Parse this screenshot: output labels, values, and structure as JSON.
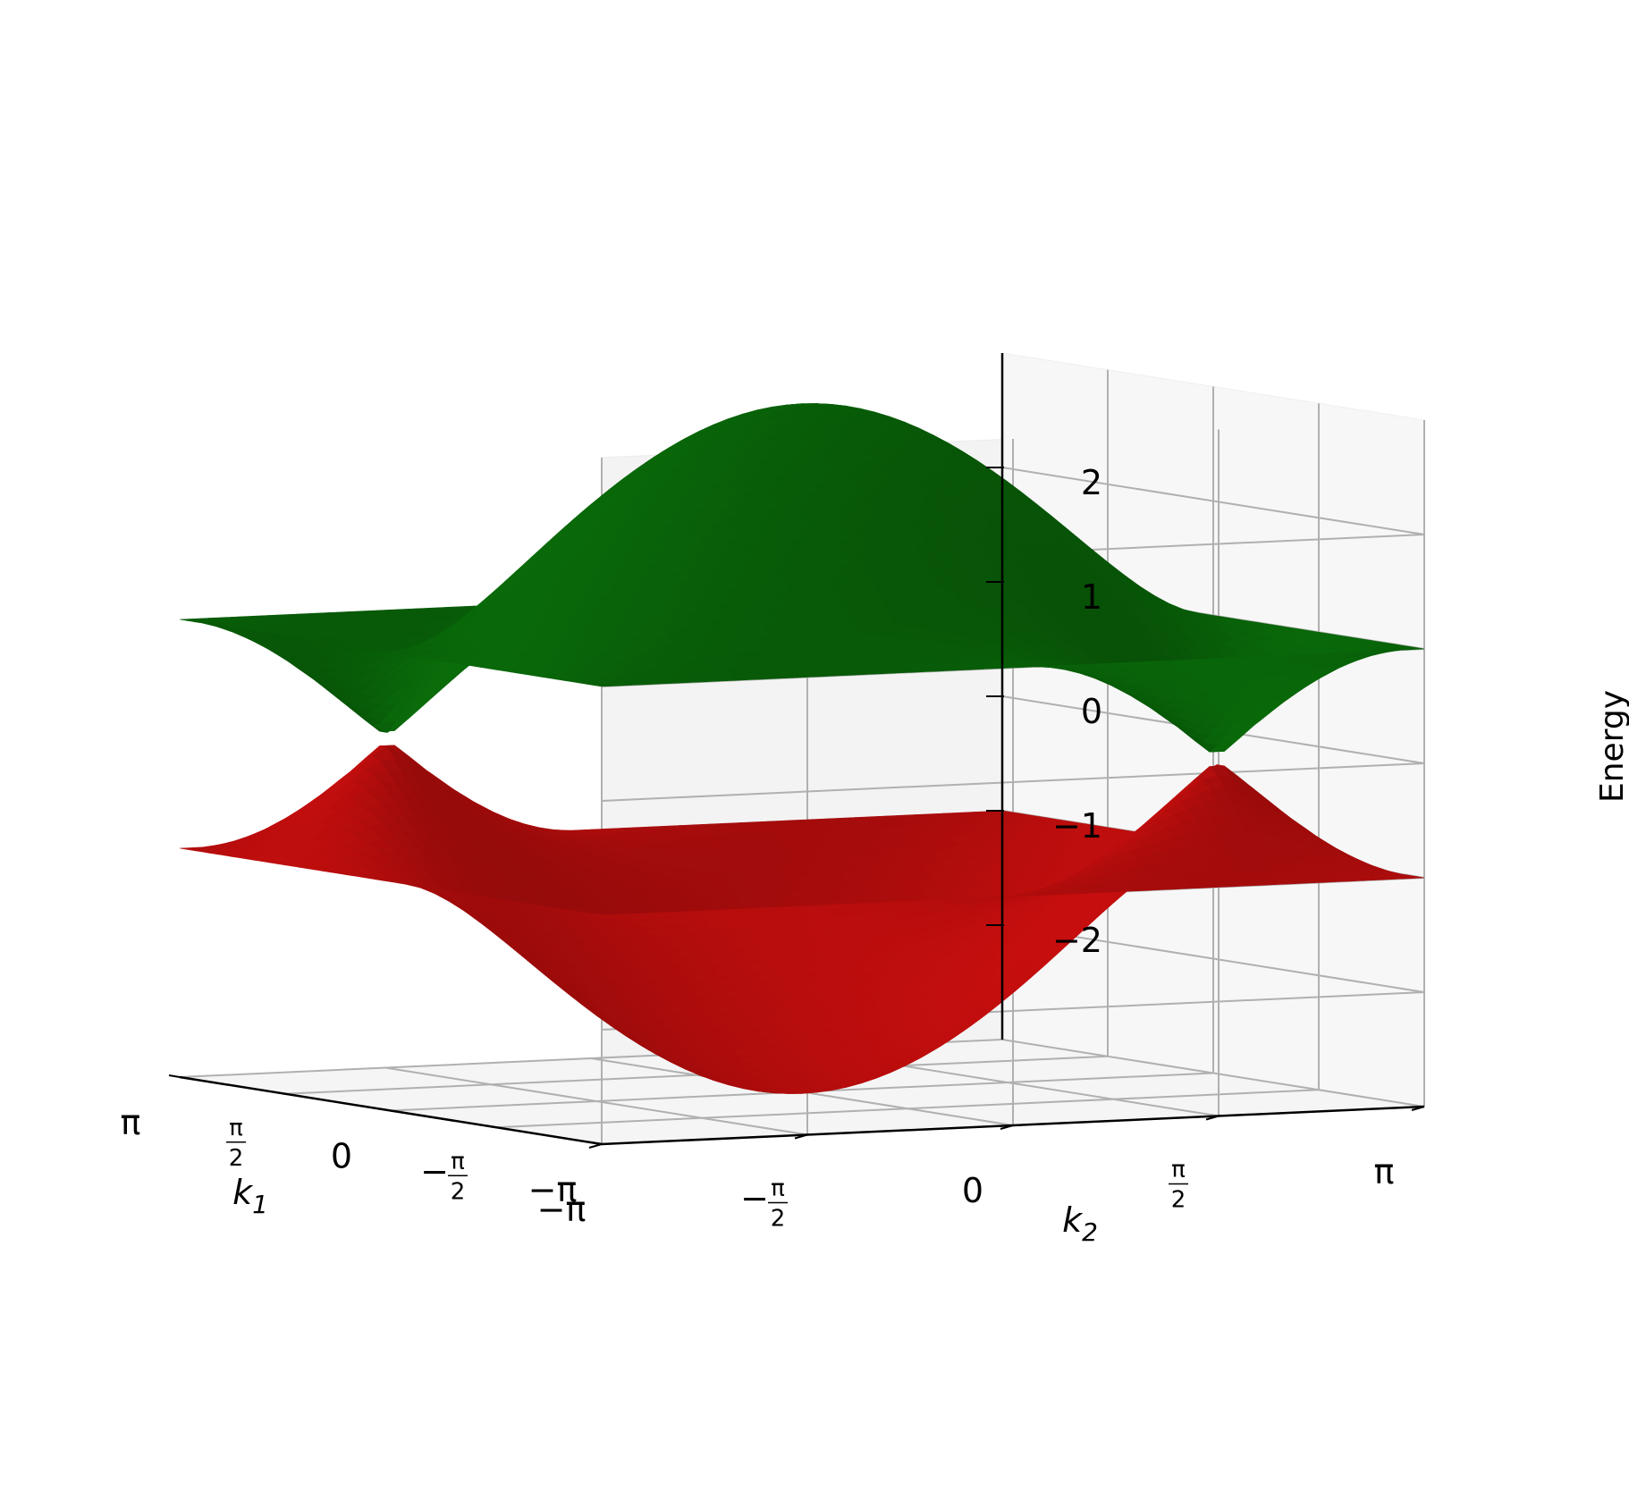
{
  "chart_data": {
    "type": "surface3d",
    "title": "",
    "x_axis": {
      "label": "k_1",
      "label_text": "k",
      "label_sub": "1",
      "range": [
        -3.14159,
        3.14159
      ],
      "ticks": [
        {
          "v": -3.14159,
          "t": "−π"
        },
        {
          "v": -1.5708,
          "t": "−π/2",
          "sign": "−",
          "num": "π",
          "den": "2"
        },
        {
          "v": 0,
          "t": "0"
        },
        {
          "v": 1.5708,
          "t": "π/2",
          "num": "π",
          "den": "2"
        },
        {
          "v": 3.14159,
          "t": "π"
        }
      ]
    },
    "y_axis": {
      "label": "k_2",
      "label_text": "k",
      "label_sub": "2",
      "range": [
        -3.14159,
        3.14159
      ],
      "ticks": [
        {
          "v": -3.14159,
          "t": "−π"
        },
        {
          "v": -1.5708,
          "t": "−π/2",
          "sign": "−",
          "num": "π",
          "den": "2"
        },
        {
          "v": 0,
          "t": "0"
        },
        {
          "v": 1.5708,
          "t": "π/2",
          "num": "π",
          "den": "2"
        },
        {
          "v": 3.14159,
          "t": "π"
        }
      ]
    },
    "z_axis": {
      "label": "Energy",
      "range": [
        -3,
        3
      ],
      "ticks": [
        {
          "v": -2,
          "t": "−2"
        },
        {
          "v": -1,
          "t": "−1"
        },
        {
          "v": 0,
          "t": "0"
        },
        {
          "v": 1,
          "t": "1"
        },
        {
          "v": 2,
          "t": "2"
        }
      ]
    },
    "grid": true,
    "series": [
      {
        "band": "upper",
        "color": "#0b7a0b",
        "min": 0.1,
        "max": 2.98,
        "flat_level": 1
      },
      {
        "band": "lower",
        "color": "#e01010",
        "min": -2.98,
        "max": -0.1,
        "flat_level": -1
      }
    ]
  }
}
